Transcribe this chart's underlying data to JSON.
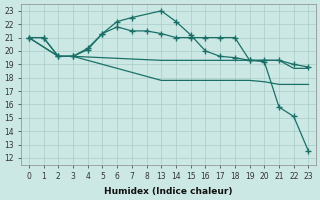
{
  "xlabel": "Humidex (Indice chaleur)",
  "bg_color": "#cce8e4",
  "grid_color": "#aaccca",
  "line_color": "#1a7068",
  "ylim": [
    11.5,
    23.5
  ],
  "yticks": [
    12,
    13,
    14,
    15,
    16,
    17,
    18,
    19,
    20,
    21,
    22,
    23
  ],
  "xtick_vals": [
    0,
    1,
    2,
    3,
    4,
    5,
    6,
    7,
    8,
    13,
    14,
    15,
    16,
    17,
    18,
    19,
    20,
    21,
    22,
    23
  ],
  "lines": [
    {
      "x": [
        0,
        1,
        2,
        3,
        4,
        5,
        6,
        7,
        13,
        14,
        15,
        16,
        17,
        18,
        19,
        20,
        21,
        22,
        23
      ],
      "y": [
        21,
        21,
        19.6,
        19.6,
        20.1,
        21.3,
        22.2,
        22.5,
        23.0,
        22.2,
        21.2,
        20.0,
        19.6,
        19.5,
        19.3,
        19.2,
        15.8,
        15.1,
        12.5
      ],
      "marker": true
    },
    {
      "x": [
        0,
        1,
        2,
        3,
        4,
        5,
        6,
        7,
        8,
        13,
        14,
        15,
        16,
        17,
        18,
        19,
        20,
        21,
        22,
        23
      ],
      "y": [
        21,
        21,
        19.6,
        19.6,
        20.2,
        21.3,
        21.8,
        21.5,
        21.5,
        21.3,
        21.0,
        21.0,
        21.0,
        21.0,
        21.0,
        19.3,
        19.3,
        19.3,
        19.0,
        18.8
      ],
      "marker": true
    },
    {
      "x": [
        0,
        2,
        3,
        13,
        14,
        15,
        16,
        17,
        18,
        19,
        20,
        21,
        22,
        23
      ],
      "y": [
        21,
        19.6,
        19.6,
        19.3,
        19.3,
        19.3,
        19.3,
        19.3,
        19.3,
        19.3,
        19.3,
        19.3,
        18.7,
        18.7
      ],
      "marker": false
    },
    {
      "x": [
        0,
        2,
        3,
        13,
        14,
        15,
        16,
        17,
        18,
        19,
        20,
        21,
        22,
        23
      ],
      "y": [
        21,
        19.6,
        19.6,
        17.8,
        17.8,
        17.8,
        17.8,
        17.8,
        17.8,
        17.8,
        17.7,
        17.5,
        17.5,
        17.5
      ],
      "marker": false
    }
  ]
}
